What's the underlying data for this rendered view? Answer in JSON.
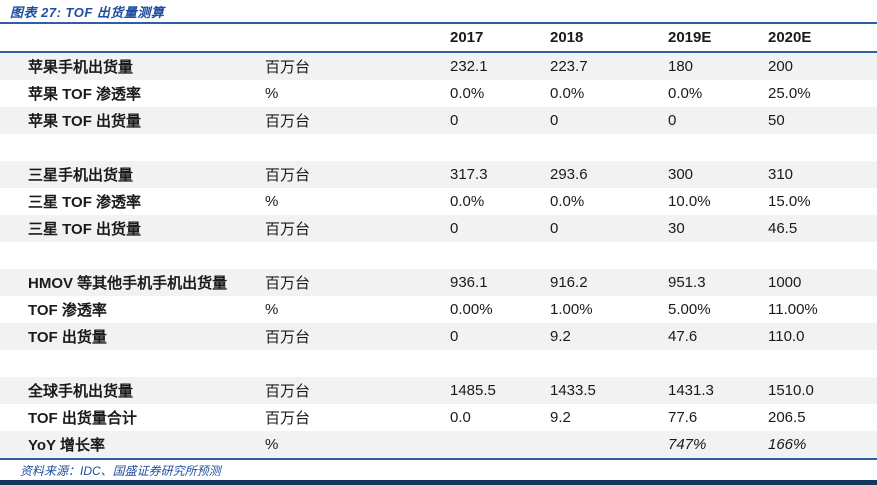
{
  "figure_title": "图表 27: TOF 出货量测算",
  "source_note": "资料来源：IDC、国盛证券研究所预测",
  "table": {
    "years": [
      "2017",
      "2018",
      "2019E",
      "2020E"
    ],
    "rows": [
      {
        "label": "苹果手机出货量",
        "unit": "百万台",
        "values": [
          "232.1",
          "223.7",
          "180",
          "200"
        ]
      },
      {
        "label": "苹果 TOF 渗透率",
        "unit": "%",
        "values": [
          "0.0%",
          "0.0%",
          "0.0%",
          "25.0%"
        ]
      },
      {
        "label": "苹果 TOF 出货量",
        "unit": "百万台",
        "values": [
          "0",
          "0",
          "0",
          "50"
        ]
      },
      {
        "label": "三星手机出货量",
        "unit": "百万台",
        "values": [
          "317.3",
          "293.6",
          "300",
          "310"
        ]
      },
      {
        "label": "三星 TOF 渗透率",
        "unit": "%",
        "values": [
          "0.0%",
          "0.0%",
          "10.0%",
          "15.0%"
        ]
      },
      {
        "label": "三星 TOF 出货量",
        "unit": "百万台",
        "values": [
          "0",
          "0",
          "30",
          "46.5"
        ]
      },
      {
        "label": "HMOV 等其他手机手机出货量",
        "unit": "百万台",
        "values": [
          "936.1",
          "916.2",
          "951.3",
          "1000"
        ]
      },
      {
        "label": "TOF 渗透率",
        "unit": "%",
        "values": [
          "0.00%",
          "1.00%",
          "5.00%",
          "11.00%"
        ]
      },
      {
        "label": "TOF 出货量",
        "unit": "百万台",
        "values": [
          "0",
          "9.2",
          "47.6",
          "110.0"
        ]
      },
      {
        "label": "全球手机出货量",
        "unit": "百万台",
        "values": [
          "1485.5",
          "1433.5",
          "1431.3",
          "1510.0"
        ]
      },
      {
        "label": "TOF 出货量合计",
        "unit": "百万台",
        "values": [
          "0.0",
          "9.2",
          "77.6",
          "206.5"
        ]
      },
      {
        "label": "YoY 增长率",
        "unit": "%",
        "values": [
          "",
          "",
          "747%",
          "166%"
        ]
      }
    ]
  },
  "colors": {
    "accent_blue": "#1F4E9F",
    "rule_blue": "#2E5FA3",
    "bottom_bar_navy": "#17365D",
    "shaded_row": "#F2F2F2",
    "text": "#1A1A1A"
  }
}
